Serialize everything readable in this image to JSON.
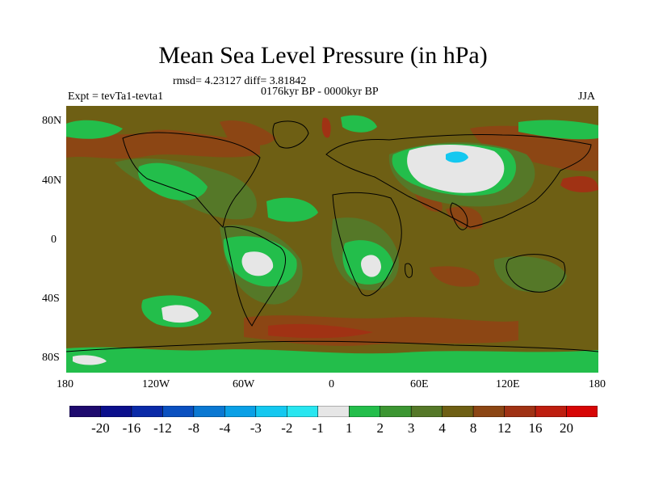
{
  "header": {
    "title": "Mean Sea Level Pressure (in hPa)",
    "stats": "rmsd= 4.23127 diff= 3.81842",
    "period": "0176kyr BP - 0000kyr BP",
    "experiment": "Expt = tevTa1-tevta1",
    "season": "JJA"
  },
  "axes": {
    "y_ticks": [
      "80N",
      "40N",
      "0",
      "40S",
      "80S"
    ],
    "x_ticks": [
      "180",
      "120W",
      "60W",
      "0",
      "60E",
      "120E",
      "180"
    ]
  },
  "colorbar": {
    "colors": [
      "#1e0a6e",
      "#0b0f8c",
      "#0a2aa8",
      "#0a50c0",
      "#0a78d2",
      "#0aa0e6",
      "#14c8f0",
      "#28e6f0",
      "#e6e6e6",
      "#23be4b",
      "#3c9632",
      "#557828",
      "#6e5f14",
      "#8c4614",
      "#a03214",
      "#be1e0f",
      "#d70505"
    ],
    "labels": [
      "-20",
      "-16",
      "-12",
      "-8",
      "-4",
      "-3",
      "-2",
      "-1",
      "1",
      "2",
      "3",
      "4",
      "8",
      "12",
      "16",
      "20"
    ]
  },
  "map_colors": {
    "background": "#6e5f14",
    "lightgreen": "#23be4b",
    "midgreen": "#3c9632",
    "olive": "#557828",
    "white": "#e6e6e6",
    "cyan": "#14c8f0",
    "brown": "#8c4614",
    "red": "#a03214",
    "coast": "#000000"
  }
}
